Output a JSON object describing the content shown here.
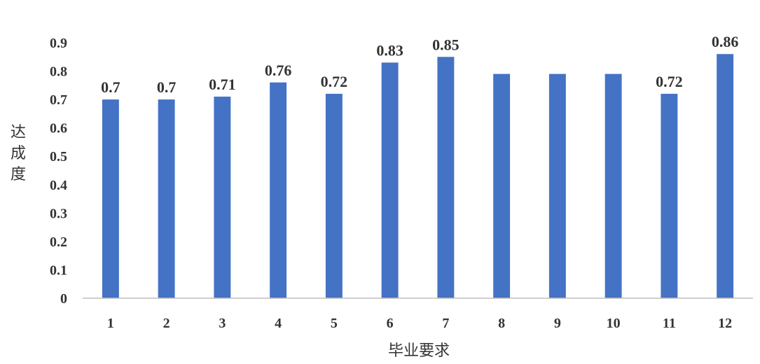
{
  "chart_data": {
    "type": "bar",
    "title": "",
    "xlabel": "毕业要求",
    "ylabel": "达成度",
    "ylim": [
      0,
      0.9
    ],
    "yticks": [
      "0",
      "0.1",
      "0.2",
      "0.3",
      "0.4",
      "0.5",
      "0.6",
      "0.7",
      "0.8",
      "0.9"
    ],
    "categories": [
      "1",
      "2",
      "3",
      "4",
      "5",
      "6",
      "7",
      "8",
      "9",
      "10",
      "11",
      "12"
    ],
    "values": [
      0.7,
      0.7,
      0.71,
      0.76,
      0.72,
      0.83,
      0.85,
      0.79,
      0.79,
      0.79,
      0.72,
      0.86
    ],
    "data_labels": [
      "0.7",
      "0.7",
      "0.71",
      "0.76",
      "0.72",
      "0.83",
      "0.85",
      "",
      "",
      "",
      "0.72",
      "0.86"
    ],
    "bar_color": "#4472c4",
    "grid": false,
    "legend": "none"
  }
}
